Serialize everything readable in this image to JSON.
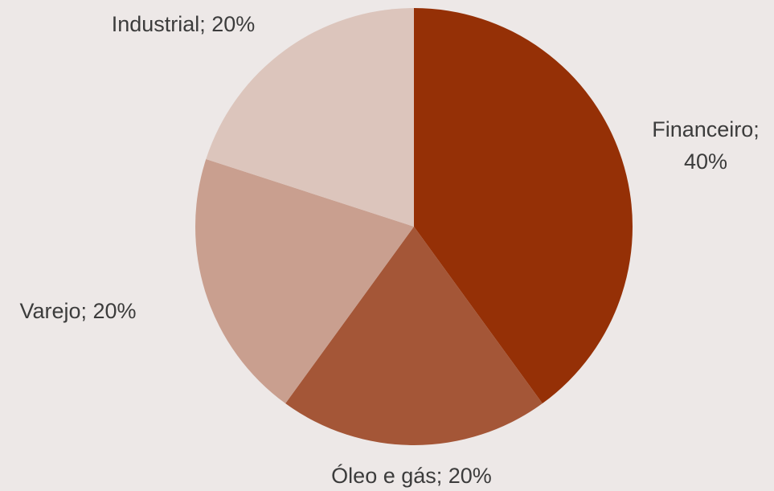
{
  "chart_data": {
    "type": "pie",
    "categories": [
      "Financeiro",
      "Óleo e gás",
      "Varejo",
      "Industrial"
    ],
    "values": [
      40,
      20,
      20,
      20
    ],
    "labels": [
      {
        "lines": [
          "Financeiro;",
          "40%"
        ]
      },
      {
        "lines": [
          "Óleo e gás; 20%"
        ]
      },
      {
        "lines": [
          "Varejo; 20%"
        ]
      },
      {
        "lines": [
          "Industrial; 20%"
        ]
      }
    ],
    "colors": [
      "#953006",
      "#a45637",
      "#c99f8f",
      "#dcc5bc"
    ],
    "start_angle_deg": 0,
    "direction": "clockwise"
  }
}
